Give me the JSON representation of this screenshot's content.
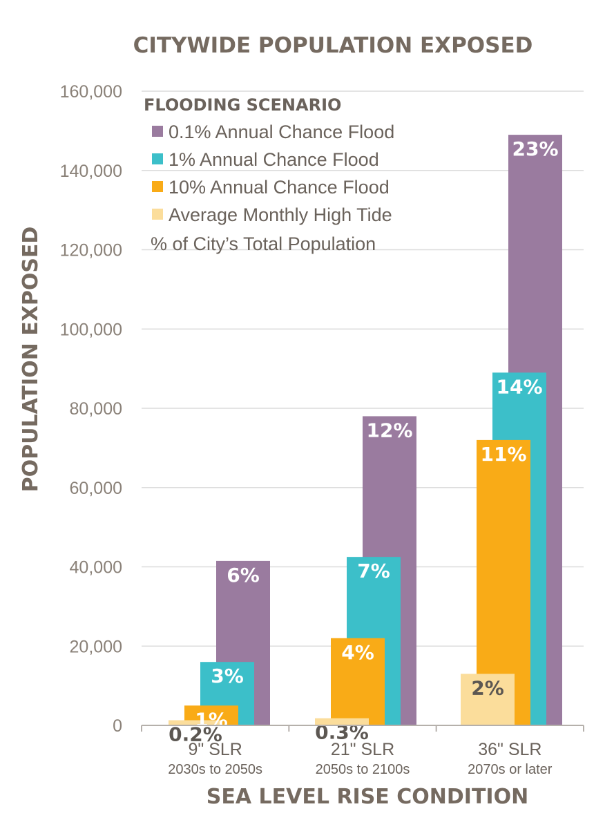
{
  "chart_data": {
    "type": "bar",
    "title": "CITYWIDE POPULATION EXPOSED",
    "xlabel": "SEA LEVEL RISE CONDITION",
    "ylabel": "POPULATION EXPOSED",
    "ylim": [
      0,
      160000
    ],
    "yticks": [
      {
        "value": 0,
        "label": "0"
      },
      {
        "value": 20000,
        "label": "20,000"
      },
      {
        "value": 40000,
        "label": "40,000"
      },
      {
        "value": 60000,
        "label": "60,000"
      },
      {
        "value": 80000,
        "label": "80,000"
      },
      {
        "value": 100000,
        "label": "100,000"
      },
      {
        "value": 120000,
        "label": "120,000"
      },
      {
        "value": 140000,
        "label": "140,000"
      },
      {
        "value": 160000,
        "label": "160,000"
      }
    ],
    "grid": true,
    "legend_title": "FLOODING SCENARIO",
    "legend_placement": "top-left",
    "legend_note": "% of City’s Total Population",
    "categories": [
      {
        "label": "9\" SLR",
        "sublabel": "2030s to 2050s"
      },
      {
        "label": "21\" SLR",
        "sublabel": "2050s to 2100s"
      },
      {
        "label": "36\" SLR",
        "sublabel": "2070s or later"
      }
    ],
    "series": [
      {
        "name": "Average Monthly High Tide",
        "color": "#fbdd9b",
        "label_color": "#5c5752",
        "values": [
          1300,
          1800,
          13000
        ],
        "labels": [
          "0.2%",
          "0.3%",
          "2%"
        ]
      },
      {
        "name": "10% Annual Chance Flood",
        "color": "#f9ab17",
        "label_color": "#ffffff",
        "values": [
          5000,
          22000,
          72000
        ],
        "labels": [
          "1%",
          "4%",
          "11%"
        ]
      },
      {
        "name": "1% Annual Chance Flood",
        "color": "#3cbfc9",
        "label_color": "#ffffff",
        "values": [
          16000,
          42500,
          89000
        ],
        "labels": [
          "3%",
          "7%",
          "14%"
        ]
      },
      {
        "name": "0.1% Annual Chance Flood",
        "color": "#9a7b9f",
        "label_color": "#ffffff",
        "values": [
          41500,
          78000,
          149000
        ],
        "labels": [
          "6%",
          "12%",
          "23%"
        ]
      }
    ],
    "legend_order": [
      3,
      2,
      1,
      0
    ]
  }
}
